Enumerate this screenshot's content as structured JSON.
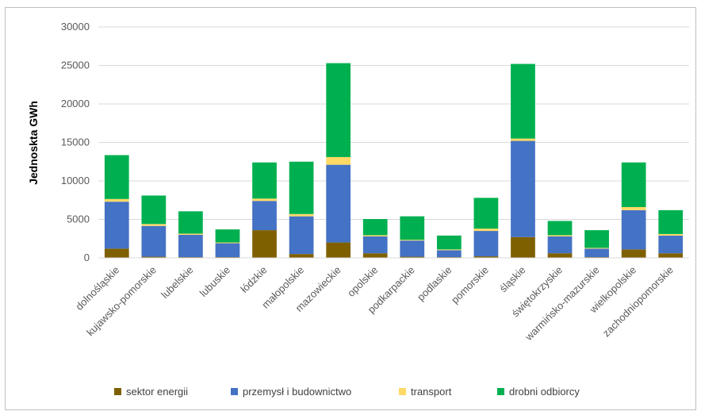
{
  "chart_data": {
    "type": "bar",
    "stacked": true,
    "title": "",
    "xlabel": "",
    "ylabel": "Jednoskta GWh",
    "ylim": [
      0,
      30000
    ],
    "yticks": [
      0,
      5000,
      10000,
      15000,
      20000,
      25000,
      30000
    ],
    "grid": true,
    "legend_position": "bottom",
    "categories": [
      "dolnośląskie",
      "kujawsko-pomorskie",
      "lubelskie",
      "lubuskie",
      "łódzkie",
      "małopolskie",
      "mazowieckie",
      "opolskie",
      "podkarpackie",
      "podlaskie",
      "pomorskie",
      "śląskie",
      "świętokrzyskie",
      "warmińsko-mazurskie",
      "wielkopolskie",
      "zachodniopomorskie"
    ],
    "series": [
      {
        "name": "sektor energii",
        "color": "#7f6000",
        "values": [
          1200,
          150,
          100,
          100,
          3600,
          500,
          2000,
          600,
          150,
          100,
          200,
          2700,
          600,
          100,
          1100,
          600
        ]
      },
      {
        "name": "przemysł i budownictwo",
        "color": "#4472c4",
        "values": [
          6100,
          4000,
          2900,
          1800,
          3800,
          4900,
          10100,
          2200,
          2100,
          900,
          3300,
          12500,
          2200,
          1100,
          5100,
          2300
        ]
      },
      {
        "name": "transport",
        "color": "#ffd966",
        "values": [
          350,
          250,
          150,
          100,
          300,
          300,
          1000,
          150,
          100,
          100,
          300,
          300,
          150,
          100,
          400,
          200
        ]
      },
      {
        "name": "drobni odbiorcy",
        "color": "#00b050",
        "values": [
          5700,
          3700,
          2900,
          1700,
          4700,
          6800,
          12200,
          2100,
          3050,
          1800,
          4000,
          9700,
          1850,
          2300,
          5800,
          3100
        ]
      }
    ]
  }
}
